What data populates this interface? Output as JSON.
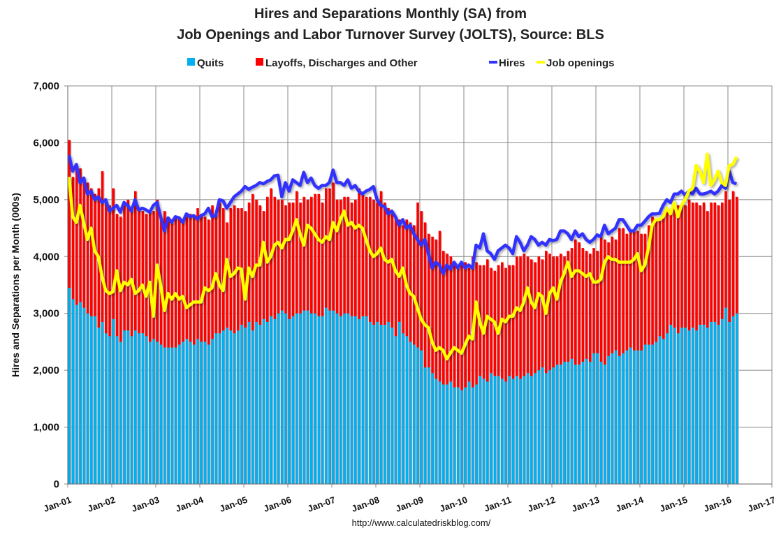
{
  "chart_data": {
    "type": "bar",
    "title": [
      "Hires and Separations Monthly (SA) from",
      "Job Openings and Labor Turnover Survey (JOLTS), Source: BLS"
    ],
    "ylabel": "Hires and Separations per Month (000s)",
    "xlabel": "",
    "ylim": [
      0,
      7000
    ],
    "yticks": [
      "0",
      "1,000",
      "2,000",
      "3,000",
      "4,000",
      "5,000",
      "6,000",
      "7,000"
    ],
    "yvalues": [
      0,
      1000,
      2000,
      3000,
      4000,
      5000,
      6000,
      7000
    ],
    "xticks": [
      "Jan-01",
      "Jan-02",
      "Jan-03",
      "Jan-04",
      "Jan-05",
      "Jan-06",
      "Jan-07",
      "Jan-08",
      "Jan-09",
      "Jan-10",
      "Jan-11",
      "Jan-12",
      "Jan-13",
      "Jan-14",
      "Jan-15",
      "Jan-16",
      "Jan-17"
    ],
    "start_month": "Jan-01",
    "grid": true,
    "legend_position": "top",
    "source": "http://www.calculatedriskblog.com/",
    "series": [
      {
        "name": "Quits",
        "kind": "stacked-bar",
        "color": "#00B0F0",
        "values": [
          3450,
          3250,
          3150,
          3200,
          3100,
          3000,
          2950,
          2950,
          2750,
          2850,
          2650,
          2600,
          2900,
          2600,
          2500,
          2700,
          2700,
          2600,
          2700,
          2650,
          2650,
          2600,
          2500,
          2550,
          2500,
          2450,
          2400,
          2400,
          2400,
          2400,
          2450,
          2500,
          2550,
          2500,
          2450,
          2550,
          2500,
          2500,
          2450,
          2550,
          2650,
          2650,
          2700,
          2750,
          2700,
          2650,
          2700,
          2800,
          2750,
          2850,
          2700,
          2850,
          2800,
          2900,
          2850,
          2950,
          2900,
          3000,
          3050,
          3000,
          2900,
          2950,
          3000,
          3000,
          3050,
          3050,
          3000,
          3000,
          2950,
          2950,
          3100,
          3050,
          3050,
          3000,
          2950,
          3000,
          3000,
          2950,
          2950,
          2900,
          2950,
          2950,
          2850,
          2800,
          2850,
          2800,
          2800,
          2850,
          2750,
          2600,
          2850,
          2650,
          2600,
          2500,
          2450,
          2400,
          2350,
          2050,
          2050,
          1950,
          1850,
          1800,
          1750,
          1750,
          1800,
          1700,
          1700,
          1650,
          1700,
          1800,
          1700,
          1750,
          1900,
          1850,
          1800,
          1950,
          1900,
          1900,
          1850,
          1800,
          1900,
          1850,
          1900,
          1850,
          1900,
          1950,
          1900,
          1950,
          2000,
          2050,
          1950,
          2000,
          2050,
          2100,
          2100,
          2150,
          2150,
          2200,
          2100,
          2100,
          2150,
          2200,
          2150,
          2300,
          2300,
          2150,
          2100,
          2250,
          2300,
          2350,
          2250,
          2300,
          2350,
          2400,
          2350,
          2350,
          2350,
          2450,
          2450,
          2450,
          2500,
          2600,
          2550,
          2650,
          2800,
          2750,
          2650,
          2750,
          2750,
          2700,
          2750,
          2700,
          2800,
          2800,
          2750,
          2850,
          2850,
          2800,
          2900,
          3100,
          2850,
          2950,
          3000
        ]
      },
      {
        "name": "Layoffs, Discharges and Other",
        "kind": "stacked-bar-total",
        "color": "#FF0000",
        "values": [
          6050,
          5400,
          5600,
          5550,
          5400,
          5300,
          5200,
          5100,
          5200,
          5500,
          4950,
          4900,
          5200,
          4750,
          4700,
          4950,
          5000,
          4850,
          5150,
          4850,
          4800,
          4750,
          4800,
          4800,
          5000,
          4700,
          4800,
          4650,
          4600,
          4700,
          4700,
          4650,
          4700,
          4750,
          4700,
          4850,
          4750,
          4700,
          4650,
          4900,
          4750,
          4950,
          4850,
          4600,
          4850,
          4900,
          4850,
          4850,
          4800,
          4950,
          5100,
          5000,
          4900,
          4800,
          5050,
          5200,
          5050,
          5000,
          5000,
          4900,
          4950,
          4950,
          5150,
          4950,
          5050,
          5000,
          5050,
          5100,
          5100,
          4950,
          5200,
          5200,
          5300,
          5000,
          5000,
          5050,
          5050,
          4950,
          5000,
          5200,
          5100,
          5050,
          5050,
          5000,
          4950,
          5150,
          4950,
          4850,
          4750,
          4700,
          4650,
          4550,
          4650,
          4600,
          4550,
          4950,
          4800,
          4600,
          4400,
          4350,
          4300,
          4450,
          4100,
          4050,
          4000,
          3850,
          3850,
          3900,
          3900,
          3800,
          4000,
          3900,
          3850,
          3850,
          3950,
          3800,
          3750,
          3850,
          3900,
          3800,
          3850,
          3850,
          4000,
          4000,
          4050,
          4000,
          3950,
          3900,
          4000,
          3950,
          4100,
          4050,
          4000,
          4000,
          4050,
          4000,
          4100,
          4150,
          4300,
          4250,
          4150,
          4100,
          4050,
          4150,
          4100,
          4350,
          4300,
          4250,
          4350,
          4300,
          4500,
          4500,
          4400,
          4450,
          4450,
          4450,
          4400,
          4400,
          4550,
          4700,
          4650,
          4650,
          4750,
          4800,
          4800,
          4850,
          4900,
          4900,
          4900,
          5000,
          4950,
          4950,
          4900,
          4950,
          4800,
          4950,
          4950,
          4900,
          4950,
          5150,
          5000,
          5150,
          5050
        ]
      },
      {
        "name": "Hires",
        "kind": "line",
        "color": "#3333FF",
        "values": [
          5780,
          5500,
          5620,
          5300,
          5380,
          5100,
          5150,
          5000,
          5050,
          4950,
          5000,
          4800,
          4850,
          4900,
          4780,
          4950,
          4900,
          4800,
          5000,
          4820,
          4850,
          4820,
          4780,
          4900,
          4950,
          4700,
          4450,
          4680,
          4600,
          4700,
          4680,
          4600,
          4750,
          4700,
          4720,
          4660,
          4720,
          4750,
          4850,
          4700,
          4720,
          5000,
          4980,
          4850,
          4950,
          5050,
          5100,
          5150,
          5230,
          5180,
          5220,
          5250,
          5300,
          5280,
          5320,
          5350,
          5420,
          5430,
          5050,
          5300,
          5150,
          5350,
          5300,
          5250,
          5480,
          5300,
          5380,
          5250,
          5200,
          5250,
          5250,
          5300,
          5520,
          5300,
          5300,
          5250,
          5350,
          5200,
          5250,
          5150,
          5100,
          5150,
          5180,
          5230,
          5000,
          4900,
          4880,
          4750,
          4800,
          4700,
          4550,
          4650,
          4500,
          4550,
          4400,
          4300,
          4200,
          4300,
          4050,
          3800,
          3900,
          3850,
          3700,
          3850,
          3780,
          3900,
          3800,
          3900,
          3800,
          3850,
          3800,
          4200,
          4150,
          4400,
          4100,
          4050,
          3950,
          4100,
          4150,
          4200,
          4150,
          4050,
          4350,
          4250,
          4100,
          4200,
          4350,
          4300,
          4200,
          4250,
          4200,
          4300,
          4280,
          4300,
          4450,
          4450,
          4400,
          4300,
          4450,
          4350,
          4400,
          4300,
          4250,
          4300,
          4380,
          4350,
          4550,
          4400,
          4450,
          4500,
          4650,
          4650,
          4550,
          4450,
          4450,
          4550,
          4550,
          4620,
          4700,
          4750,
          4750,
          4760,
          4900,
          5000,
          4950,
          5100,
          5100,
          5150,
          5080,
          5150,
          5100,
          5200,
          5100,
          5100,
          5120,
          5150,
          5100,
          5150,
          5250,
          5200,
          5500,
          5300,
          5280
        ]
      },
      {
        "name": "Job openings",
        "kind": "line",
        "color": "#FFFF00",
        "values": [
          5400,
          4700,
          4600,
          4900,
          4600,
          4300,
          4500,
          4100,
          4000,
          3650,
          3400,
          3350,
          3380,
          3750,
          3400,
          3550,
          3500,
          3600,
          3350,
          3400,
          3500,
          3300,
          3550,
          2950,
          3850,
          3500,
          3050,
          3350,
          3250,
          3350,
          3250,
          3300,
          3100,
          3150,
          3200,
          3200,
          3200,
          3450,
          3400,
          3450,
          3700,
          3500,
          3400,
          3950,
          3650,
          3700,
          3800,
          3780,
          3250,
          3800,
          3650,
          3850,
          3850,
          4250,
          3900,
          4000,
          4200,
          4250,
          4150,
          4300,
          4300,
          4450,
          4650,
          4400,
          4200,
          4550,
          4500,
          4400,
          4300,
          4250,
          4350,
          4300,
          4600,
          4450,
          4650,
          4800,
          4550,
          4600,
          4500,
          4550,
          4500,
          4300,
          4100,
          4000,
          4050,
          4150,
          3950,
          3900,
          3950,
          3750,
          3650,
          3800,
          3500,
          3350,
          3300,
          3100,
          2900,
          2800,
          2750,
          2500,
          2350,
          2400,
          2350,
          2200,
          2300,
          2400,
          2350,
          2300,
          2450,
          2600,
          2550,
          3200,
          2850,
          2650,
          2950,
          2900,
          2850,
          2650,
          2900,
          2850,
          2950,
          2950,
          3100,
          3050,
          3200,
          3450,
          3200,
          3100,
          3350,
          3300,
          3000,
          3350,
          3450,
          3250,
          3550,
          3700,
          3900,
          3650,
          3750,
          3750,
          3700,
          3650,
          3700,
          3550,
          3550,
          3600,
          3900,
          4000,
          3950,
          3950,
          3900,
          3900,
          3900,
          3900,
          3950,
          4050,
          3750,
          3850,
          4150,
          4550,
          4650,
          4650,
          4700,
          4850,
          4750,
          4950,
          4700,
          4900,
          5000,
          5150,
          5200,
          5600,
          5500,
          5300,
          5800,
          5250,
          5350,
          5500,
          5300,
          5250,
          5600,
          5620,
          5750
        ]
      }
    ]
  }
}
